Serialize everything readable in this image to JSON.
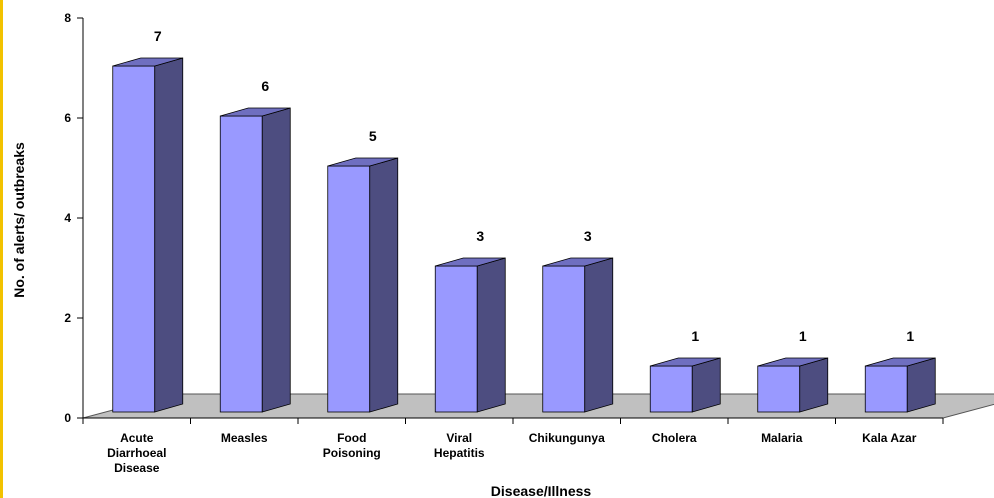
{
  "chart_data": {
    "type": "bar",
    "title": "",
    "xlabel": "Disease/Illness",
    "ylabel": "No. of alerts/ outbreaks",
    "ylim": [
      0,
      8
    ],
    "yticks": [
      0,
      2,
      4,
      6,
      8
    ],
    "grid": false,
    "categories": [
      [
        "Acute",
        "Diarrhoeal",
        "Disease"
      ],
      [
        "Measles"
      ],
      [
        "Food",
        "Poisoning"
      ],
      [
        "Viral",
        "Hepatitis"
      ],
      [
        "Chikungunya"
      ],
      [
        "Cholera"
      ],
      [
        "Malaria"
      ],
      [
        "Kala Azar"
      ]
    ],
    "values": [
      7,
      6,
      5,
      3,
      3,
      1,
      1,
      1
    ],
    "colors": {
      "bar_front": "#9999ff",
      "bar_side": "#4d4d80",
      "bar_top": "#6f6fc0",
      "floor": "#c0c0c0",
      "frame": "#f2c200"
    }
  }
}
